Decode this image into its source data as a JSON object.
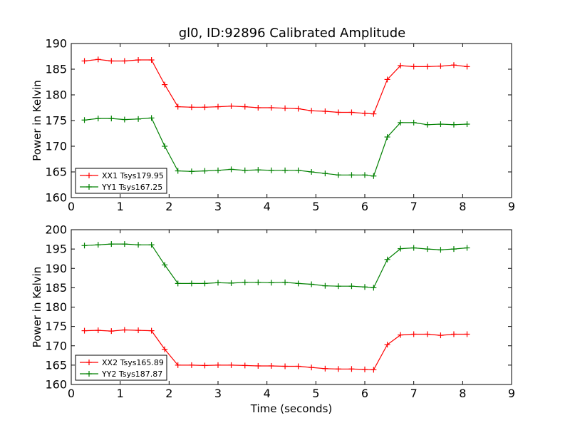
{
  "title": "gl0, ID:92896 Calibrated Amplitude",
  "chart_data": [
    {
      "type": "line",
      "title": "gl0, ID:92896 Calibrated Amplitude",
      "xlabel": "",
      "ylabel": "Power in Kelvin",
      "xlim": [
        0,
        9
      ],
      "ylim": [
        160,
        190
      ],
      "xticks": [
        0,
        1,
        2,
        3,
        4,
        5,
        6,
        7,
        8,
        9
      ],
      "yticks": [
        160,
        165,
        170,
        175,
        180,
        185,
        190
      ],
      "legend_position": "lower-left",
      "x": [
        0.27,
        0.55,
        0.82,
        1.09,
        1.37,
        1.64,
        1.91,
        2.18,
        2.46,
        2.73,
        3.0,
        3.27,
        3.55,
        3.82,
        4.09,
        4.37,
        4.64,
        4.91,
        5.19,
        5.46,
        5.73,
        6.0,
        6.18,
        6.46,
        6.73,
        7.0,
        7.28,
        7.55,
        7.82,
        8.09
      ],
      "series": [
        {
          "name": "XX1 Tsys179.95",
          "color": "#ff0000",
          "values": [
            186.6,
            186.9,
            186.6,
            186.6,
            186.8,
            186.8,
            182.0,
            177.7,
            177.6,
            177.6,
            177.7,
            177.8,
            177.7,
            177.5,
            177.5,
            177.4,
            177.3,
            176.9,
            176.8,
            176.6,
            176.6,
            176.4,
            176.3,
            183.0,
            185.7,
            185.5,
            185.5,
            185.6,
            185.8,
            185.5
          ]
        },
        {
          "name": "YY1 Tsys167.25",
          "color": "#008000",
          "values": [
            175.1,
            175.4,
            175.4,
            175.2,
            175.3,
            175.5,
            170.0,
            165.2,
            165.1,
            165.2,
            165.3,
            165.5,
            165.3,
            165.4,
            165.3,
            165.3,
            165.3,
            165.0,
            164.7,
            164.4,
            164.4,
            164.4,
            164.2,
            171.8,
            174.6,
            174.6,
            174.2,
            174.3,
            174.2,
            174.3
          ]
        }
      ]
    },
    {
      "type": "line",
      "title": "",
      "xlabel": "Time (seconds)",
      "ylabel": "Power in Kelvin",
      "xlim": [
        0,
        9
      ],
      "ylim": [
        160,
        200
      ],
      "xticks": [
        0,
        1,
        2,
        3,
        4,
        5,
        6,
        7,
        8,
        9
      ],
      "yticks": [
        160,
        165,
        170,
        175,
        180,
        185,
        190,
        195,
        200
      ],
      "legend_position": "lower-left",
      "x": [
        0.27,
        0.55,
        0.82,
        1.09,
        1.37,
        1.64,
        1.91,
        2.18,
        2.46,
        2.73,
        3.0,
        3.27,
        3.55,
        3.82,
        4.09,
        4.37,
        4.64,
        4.91,
        5.19,
        5.46,
        5.73,
        6.0,
        6.18,
        6.46,
        6.73,
        7.0,
        7.28,
        7.55,
        7.82,
        8.09
      ],
      "series": [
        {
          "name": "XX2 Tsys165.89",
          "color": "#ff0000",
          "values": [
            173.9,
            174.0,
            173.8,
            174.1,
            174.0,
            173.9,
            169.1,
            165.0,
            165.0,
            164.9,
            165.0,
            165.0,
            164.9,
            164.8,
            164.8,
            164.7,
            164.7,
            164.4,
            164.1,
            164.0,
            164.0,
            163.9,
            163.8,
            170.3,
            172.8,
            173.0,
            173.0,
            172.7,
            173.0,
            173.0
          ]
        },
        {
          "name": "YY2 Tsys187.87",
          "color": "#008000",
          "values": [
            195.9,
            196.1,
            196.3,
            196.3,
            196.1,
            196.1,
            190.9,
            186.1,
            186.1,
            186.1,
            186.3,
            186.2,
            186.4,
            186.4,
            186.3,
            186.4,
            186.1,
            185.9,
            185.5,
            185.4,
            185.4,
            185.2,
            185.0,
            192.3,
            195.1,
            195.3,
            195.0,
            194.8,
            195.0,
            195.3
          ]
        }
      ]
    }
  ]
}
